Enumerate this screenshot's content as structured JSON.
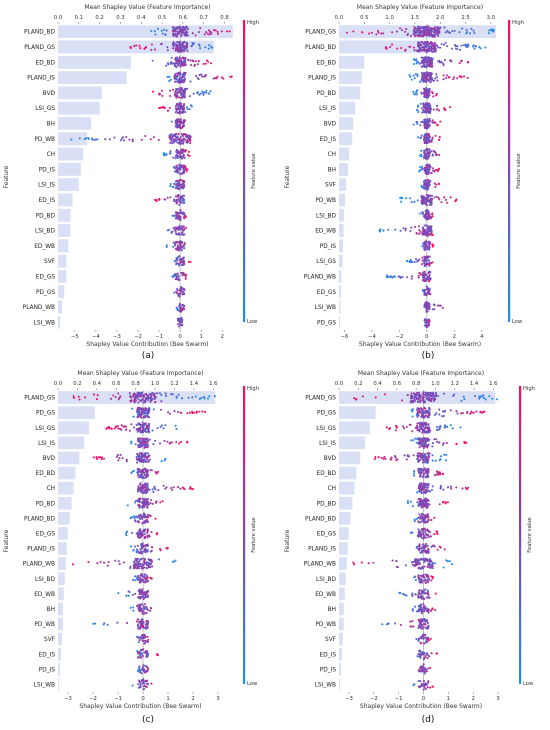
{
  "colors": {
    "bar": "#d9e0f5",
    "low": "#1f8ff0",
    "high": "#ff0a62",
    "zero_line": "#999999"
  },
  "shared_labels": {
    "top_axis": "Mean Shapley Value (Feature Importance)",
    "bottom_axis": "Shapley Value Contribution (Bee Swarm)",
    "y_axis": "Feature",
    "colorbar": "Feature value",
    "colorbar_high": "High",
    "colorbar_low": "Low"
  },
  "chart_data": [
    {
      "panel": "(a)",
      "type": "bar+beeswarm",
      "top_ticks": [
        "0.0",
        "0.1",
        "0.2",
        "0.3",
        "0.4",
        "0.5",
        "0.6",
        "0.7",
        "0.8"
      ],
      "top_lim": [
        0,
        0.86
      ],
      "bottom_ticks": [
        "−5",
        "−4",
        "−3",
        "−2",
        "−1",
        "0",
        "1",
        "2"
      ],
      "bottom_lim": [
        -5.8,
        2.7
      ],
      "features": [
        {
          "name": "PLAND_BD",
          "importance": 0.84,
          "min": -1.5,
          "max": 2.5
        },
        {
          "name": "PLAND_GS",
          "importance": 0.75,
          "min": -2.4,
          "max": 1.7
        },
        {
          "name": "ED_BD",
          "importance": 0.35,
          "min": -1.5,
          "max": 1.5
        },
        {
          "name": "PLAND_IS",
          "importance": 0.33,
          "min": -0.6,
          "max": 2.5
        },
        {
          "name": "BVD",
          "importance": 0.21,
          "min": -1.3,
          "max": 1.5
        },
        {
          "name": "LSI_GS",
          "importance": 0.2,
          "min": -1.0,
          "max": 0.6
        },
        {
          "name": "BH",
          "importance": 0.16,
          "min": -0.4,
          "max": 0.4
        },
        {
          "name": "PD_WB",
          "importance": 0.14,
          "min": -5.3,
          "max": 0.5
        },
        {
          "name": "CH",
          "importance": 0.12,
          "min": -0.8,
          "max": 0.5
        },
        {
          "name": "PD_IS",
          "importance": 0.11,
          "min": -0.4,
          "max": 0.4
        },
        {
          "name": "LSI_IS",
          "importance": 0.1,
          "min": -0.5,
          "max": 0.4
        },
        {
          "name": "ED_IS",
          "importance": 0.07,
          "min": -1.2,
          "max": 0.4
        },
        {
          "name": "PD_BD",
          "importance": 0.06,
          "min": -0.4,
          "max": 0.3
        },
        {
          "name": "LSI_BD",
          "importance": 0.06,
          "min": -0.7,
          "max": 0.3
        },
        {
          "name": "ED_WB",
          "importance": 0.05,
          "min": -0.7,
          "max": 0.5
        },
        {
          "name": "SVF",
          "importance": 0.04,
          "min": -0.3,
          "max": 0.5
        },
        {
          "name": "ED_GS",
          "importance": 0.04,
          "min": -0.4,
          "max": 0.3
        },
        {
          "name": "PD_GS",
          "importance": 0.03,
          "min": -0.3,
          "max": 0.3
        },
        {
          "name": "PLAND_WB",
          "importance": 0.02,
          "min": -0.2,
          "max": 0.2
        },
        {
          "name": "LSI_WB",
          "importance": 0.01,
          "min": -0.1,
          "max": 0.1
        }
      ]
    },
    {
      "panel": "(b)",
      "type": "bar+beeswarm",
      "top_ticks": [
        "0.0",
        "0.5",
        "1.0",
        "1.5",
        "2.0",
        "2.5",
        "3.0"
      ],
      "top_lim": [
        0,
        3.2
      ],
      "bottom_ticks": [
        "−6",
        "−4",
        "−2",
        "0",
        "2",
        "4"
      ],
      "bottom_lim": [
        -6.4,
        5.4
      ],
      "features": [
        {
          "name": "PLAND_GS",
          "importance": 3.1,
          "min": -6.0,
          "max": 5.0
        },
        {
          "name": "PLAND_BD",
          "importance": 1.7,
          "min": -3.0,
          "max": 4.5
        },
        {
          "name": "ED_BD",
          "importance": 0.5,
          "min": -1.0,
          "max": 3.5
        },
        {
          "name": "PLAND_IS",
          "importance": 0.45,
          "min": -1.3,
          "max": 3.0
        },
        {
          "name": "PD_BD",
          "importance": 0.42,
          "min": -1.0,
          "max": 1.0
        },
        {
          "name": "LSI_IS",
          "importance": 0.32,
          "min": -1.0,
          "max": 2.0
        },
        {
          "name": "BVD",
          "importance": 0.28,
          "min": -1.0,
          "max": 1.0
        },
        {
          "name": "ED_IS",
          "importance": 0.26,
          "min": -0.8,
          "max": 1.0
        },
        {
          "name": "CH",
          "importance": 0.2,
          "min": -0.5,
          "max": 1.2
        },
        {
          "name": "BH",
          "importance": 0.18,
          "min": -0.6,
          "max": 1.0
        },
        {
          "name": "SVF",
          "importance": 0.14,
          "min": -0.5,
          "max": 1.0
        },
        {
          "name": "PD_WB",
          "importance": 0.12,
          "min": -2.0,
          "max": 2.5
        },
        {
          "name": "LSI_BD",
          "importance": 0.1,
          "min": -0.5,
          "max": 0.5
        },
        {
          "name": "ED_WB",
          "importance": 0.09,
          "min": -3.5,
          "max": 0.5
        },
        {
          "name": "PD_IS",
          "importance": 0.08,
          "min": -0.4,
          "max": 0.5
        },
        {
          "name": "LSI_GS",
          "importance": 0.07,
          "min": -1.5,
          "max": 0.5
        },
        {
          "name": "PLAND_WB",
          "importance": 0.05,
          "min": -3.0,
          "max": 0.4
        },
        {
          "name": "ED_GS",
          "importance": 0.04,
          "min": -0.3,
          "max": 0.3
        },
        {
          "name": "LSI_WB",
          "importance": 0.03,
          "min": -0.3,
          "max": 1.5
        },
        {
          "name": "PD_GS",
          "importance": 0.02,
          "min": -0.2,
          "max": 0.2
        }
      ]
    },
    {
      "panel": "(c)",
      "type": "bar+beeswarm",
      "top_ticks": [
        "0.0",
        "0.2",
        "0.4",
        "0.6",
        "0.8",
        "1.0",
        "1.2",
        "1.4",
        "1.6"
      ],
      "top_lim": [
        0,
        1.7
      ],
      "bottom_ticks": [
        "−3",
        "−2",
        "−1",
        "0",
        "1",
        "2",
        "3"
      ],
      "bottom_lim": [
        -3.4,
        3.2
      ],
      "features": [
        {
          "name": "PLAND_GS",
          "importance": 1.62,
          "min": -3.0,
          "max": 3.0
        },
        {
          "name": "PD_GS",
          "importance": 0.38,
          "min": -0.5,
          "max": 2.5
        },
        {
          "name": "LSI_GS",
          "importance": 0.32,
          "min": -1.5,
          "max": 1.5
        },
        {
          "name": "LSI_IS",
          "importance": 0.27,
          "min": -0.5,
          "max": 1.8
        },
        {
          "name": "BVD",
          "importance": 0.22,
          "min": -2.0,
          "max": 1.0
        },
        {
          "name": "ED_BD",
          "importance": 0.18,
          "min": -0.5,
          "max": 0.8
        },
        {
          "name": "CH",
          "importance": 0.16,
          "min": -0.3,
          "max": 2.0
        },
        {
          "name": "PD_BD",
          "importance": 0.14,
          "min": -0.7,
          "max": 1.0
        },
        {
          "name": "PLAND_BD",
          "importance": 0.12,
          "min": -0.5,
          "max": 0.5
        },
        {
          "name": "ED_GS",
          "importance": 0.1,
          "min": -0.7,
          "max": 0.6
        },
        {
          "name": "PLAND_IS",
          "importance": 0.09,
          "min": -0.5,
          "max": 1.0
        },
        {
          "name": "PLAND_WB",
          "importance": 0.08,
          "min": -3.0,
          "max": 1.4
        },
        {
          "name": "LSI_BD",
          "importance": 0.07,
          "min": -0.4,
          "max": 0.4
        },
        {
          "name": "ED_WB",
          "importance": 0.06,
          "min": -1.0,
          "max": 0.5
        },
        {
          "name": "BH",
          "importance": 0.05,
          "min": -0.5,
          "max": 0.5
        },
        {
          "name": "PD_WB",
          "importance": 0.05,
          "min": -2.0,
          "max": 0.3
        },
        {
          "name": "SVF",
          "importance": 0.04,
          "min": -0.3,
          "max": 0.3
        },
        {
          "name": "ED_IS",
          "importance": 0.03,
          "min": -0.3,
          "max": 0.6
        },
        {
          "name": "PD_IS",
          "importance": 0.02,
          "min": -0.2,
          "max": 0.3
        },
        {
          "name": "LSI_WB",
          "importance": 0.01,
          "min": -0.5,
          "max": 0.4
        }
      ]
    },
    {
      "panel": "(d)",
      "type": "bar+beeswarm",
      "top_ticks": [
        "0.0",
        "0.2",
        "0.4",
        "0.6",
        "0.8",
        "1.0",
        "1.2",
        "1.4",
        "1.6"
      ],
      "top_lim": [
        0,
        1.7
      ],
      "bottom_ticks": [
        "−3",
        "−2",
        "−1",
        "0",
        "1",
        "2",
        "3"
      ],
      "bottom_lim": [
        -3.4,
        3.2
      ],
      "features": [
        {
          "name": "PLAND_GS",
          "importance": 1.62,
          "min": -3.0,
          "max": 3.0
        },
        {
          "name": "PD_GS",
          "importance": 0.38,
          "min": -0.5,
          "max": 2.5
        },
        {
          "name": "LSI_GS",
          "importance": 0.32,
          "min": -1.5,
          "max": 1.5
        },
        {
          "name": "LSI_IS",
          "importance": 0.27,
          "min": -0.5,
          "max": 1.8
        },
        {
          "name": "BVD",
          "importance": 0.22,
          "min": -2.0,
          "max": 1.0
        },
        {
          "name": "ED_BD",
          "importance": 0.18,
          "min": -0.5,
          "max": 0.8
        },
        {
          "name": "CH",
          "importance": 0.16,
          "min": -0.3,
          "max": 2.0
        },
        {
          "name": "PD_BD",
          "importance": 0.14,
          "min": -0.7,
          "max": 1.0
        },
        {
          "name": "PLAND_BD",
          "importance": 0.12,
          "min": -0.5,
          "max": 0.5
        },
        {
          "name": "ED_GS",
          "importance": 0.1,
          "min": -0.7,
          "max": 0.6
        },
        {
          "name": "PLAND_IS",
          "importance": 0.09,
          "min": -0.5,
          "max": 1.0
        },
        {
          "name": "PLAND_WB",
          "importance": 0.08,
          "min": -3.0,
          "max": 1.4
        },
        {
          "name": "LSI_BD",
          "importance": 0.07,
          "min": -0.4,
          "max": 0.4
        },
        {
          "name": "ED_WB",
          "importance": 0.06,
          "min": -1.0,
          "max": 0.5
        },
        {
          "name": "BH",
          "importance": 0.05,
          "min": -0.5,
          "max": 0.5
        },
        {
          "name": "PD_WB",
          "importance": 0.05,
          "min": -2.0,
          "max": 0.3
        },
        {
          "name": "SVF",
          "importance": 0.04,
          "min": -0.3,
          "max": 0.3
        },
        {
          "name": "ED_IS",
          "importance": 0.03,
          "min": -0.3,
          "max": 0.6
        },
        {
          "name": "PD_IS",
          "importance": 0.02,
          "min": -0.2,
          "max": 0.3
        },
        {
          "name": "LSI_WB",
          "importance": 0.01,
          "min": -0.5,
          "max": 0.4
        }
      ]
    }
  ]
}
